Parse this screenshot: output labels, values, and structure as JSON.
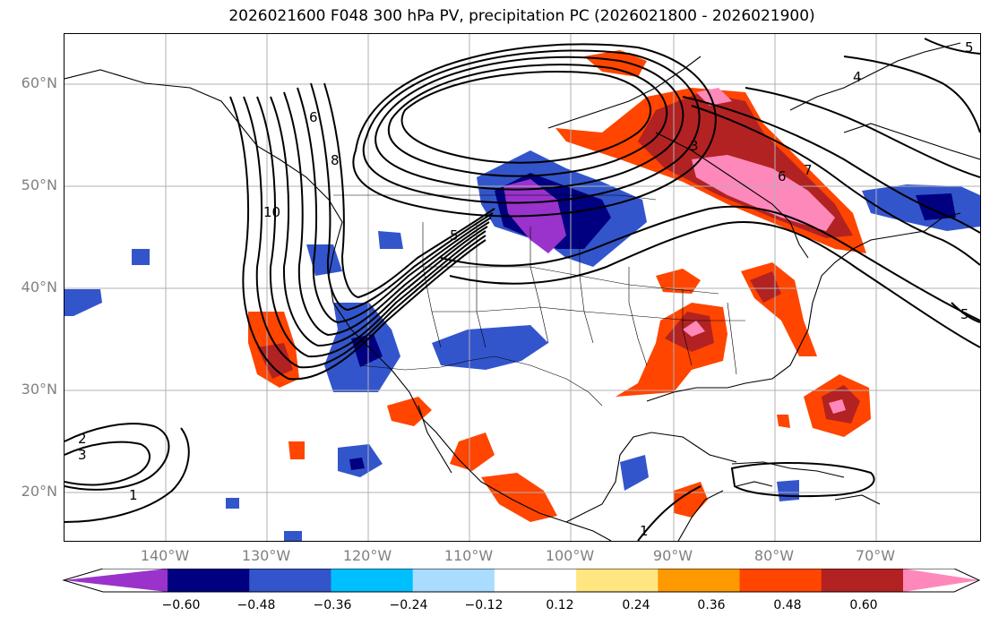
{
  "title": "2026021600 F048 300 hPa PV, precipitation PC (2026021800 - 2026021900)",
  "lat_labels": [
    "60°N",
    "50°N",
    "40°N",
    "30°N",
    "20°N"
  ],
  "lon_labels": [
    "140°W",
    "130°W",
    "120°W",
    "110°W",
    "100°W",
    "90°W",
    "80°W",
    "70°W"
  ],
  "pv_contour_labels": [
    "5",
    "4",
    "6",
    "8",
    "10",
    "3",
    "6",
    "7",
    "5",
    "5",
    "2",
    "3",
    "1",
    "1"
  ],
  "colorbar": {
    "ticks": [
      "−0.60",
      "−0.48",
      "−0.36",
      "−0.24",
      "−0.12",
      "0.12",
      "0.24",
      "0.36",
      "0.48",
      "0.60"
    ],
    "colors": [
      "#9933cc",
      "#000080",
      "#3355cc",
      "#00bfff",
      "#aadcff",
      "#ffffff",
      "#ffe680",
      "#ff9900",
      "#ff4500",
      "#b22222",
      "#ff88bb"
    ]
  },
  "colors": {
    "frame": "#000000",
    "grid": "#b0b0b0",
    "tick_label": "#808080"
  }
}
